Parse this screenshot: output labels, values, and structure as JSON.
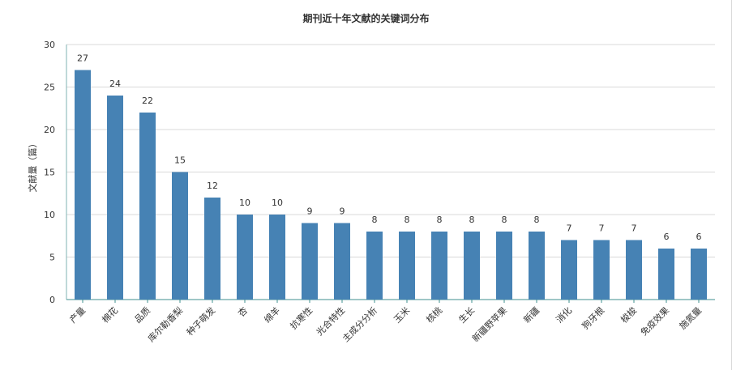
{
  "chart_data": {
    "type": "bar",
    "title": "期刊近十年文献的关键词分布",
    "xlabel": "",
    "ylabel": "文献量（篇）",
    "ylim": [
      0,
      30
    ],
    "yticks": [
      0,
      5,
      10,
      15,
      20,
      25,
      30
    ],
    "grid": true,
    "bar_color": "#4682b4",
    "categories": [
      "产量",
      "棉花",
      "品质",
      "库尔勒香梨",
      "种子萌发",
      "杏",
      "绵羊",
      "抗寒性",
      "光合特性",
      "主成分分析",
      "玉米",
      "核桃",
      "生长",
      "新疆野苹果",
      "新疆",
      "消化",
      "狗牙根",
      "梭梭",
      "免疫效果",
      "施氮量"
    ],
    "values": [
      27,
      24,
      22,
      15,
      12,
      10,
      10,
      9,
      9,
      8,
      8,
      8,
      8,
      8,
      8,
      7,
      7,
      7,
      6,
      6
    ]
  }
}
